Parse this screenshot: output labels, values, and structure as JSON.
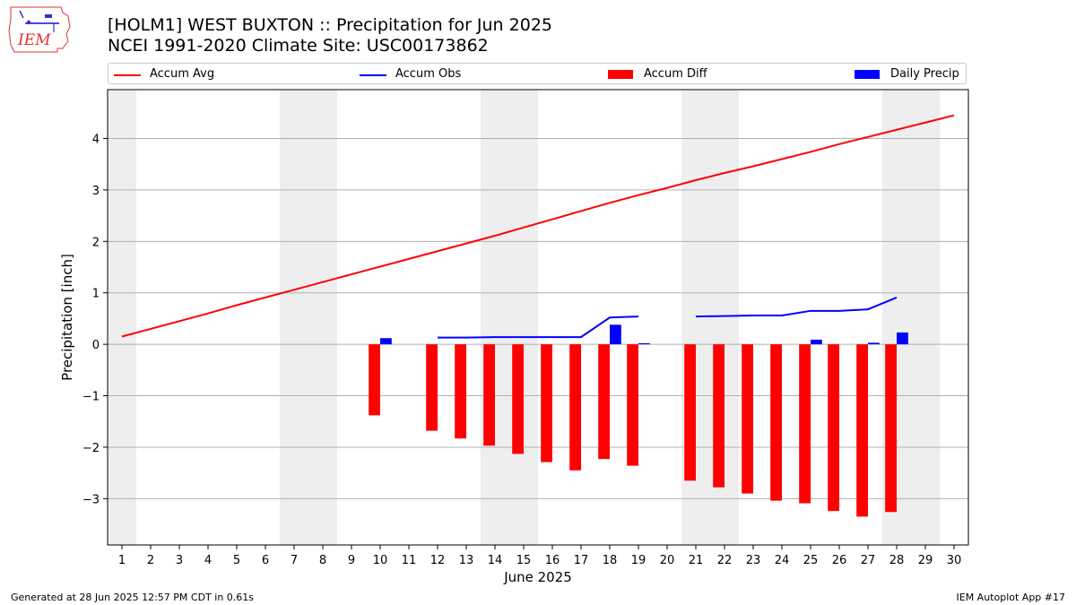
{
  "title": "[HOLM1] WEST BUXTON :: Precipitation for Jun 2025",
  "subtitle": "NCEI 1991-2020 Climate Site: USC00173862",
  "logo_text": "IEM",
  "footer_left": "Generated at 28 Jun 2025 12:57 PM CDT in 0.61s",
  "footer_right": "IEM Autoplot App #17",
  "legend": [
    {
      "label": "Accum Avg",
      "color": "#ff0000",
      "kind": "line"
    },
    {
      "label": "Accum Obs",
      "color": "#0000ff",
      "kind": "line"
    },
    {
      "label": "Accum Diff",
      "color": "#ff0000",
      "kind": "box"
    },
    {
      "label": "Daily Precip",
      "color": "#0000ff",
      "kind": "box"
    }
  ],
  "chart_data": {
    "type": "bar",
    "xlabel": "June 2025",
    "ylabel": "Precipitation [inch]",
    "xlim": [
      0.5,
      30.5
    ],
    "ylim": [
      -3.9,
      4.95
    ],
    "yticks": [
      -3,
      -2,
      -1,
      0,
      1,
      2,
      3,
      4
    ],
    "ytick_labels": [
      "−3",
      "−2",
      "−1",
      "0",
      "1",
      "2",
      "3",
      "4"
    ],
    "xticks": [
      1,
      2,
      3,
      4,
      5,
      6,
      7,
      8,
      9,
      10,
      11,
      12,
      13,
      14,
      15,
      16,
      17,
      18,
      19,
      20,
      21,
      22,
      23,
      24,
      25,
      26,
      27,
      28,
      29,
      30
    ],
    "grid": "y",
    "weekend_shading_days": [
      [
        0.5,
        1.5
      ],
      [
        6.5,
        8.5
      ],
      [
        13.5,
        15.5
      ],
      [
        20.5,
        22.5
      ],
      [
        27.5,
        29.5
      ]
    ],
    "series": [
      {
        "name": "Accum Avg",
        "type": "line",
        "color": "#ff0000",
        "x": [
          1,
          2,
          3,
          4,
          5,
          6,
          7,
          8,
          9,
          10,
          11,
          12,
          13,
          14,
          15,
          16,
          17,
          18,
          19,
          20,
          21,
          22,
          23,
          24,
          25,
          26,
          27,
          28,
          29,
          30
        ],
        "y": [
          0.15,
          0.3,
          0.45,
          0.6,
          0.76,
          0.91,
          1.06,
          1.21,
          1.36,
          1.51,
          1.66,
          1.81,
          1.96,
          2.11,
          2.27,
          2.43,
          2.59,
          2.75,
          2.9,
          3.04,
          3.19,
          3.33,
          3.46,
          3.6,
          3.74,
          3.89,
          4.03,
          4.17,
          4.31,
          4.45
        ]
      },
      {
        "name": "Accum Obs",
        "type": "line",
        "color": "#0000ff",
        "segments": [
          {
            "x": [
              12,
              13,
              14,
              15,
              16,
              17,
              18,
              19
            ],
            "y": [
              0.13,
              0.13,
              0.14,
              0.14,
              0.14,
              0.14,
              0.52,
              0.54
            ]
          },
          {
            "x": [
              21,
              22,
              23,
              24,
              25,
              26,
              27,
              28
            ],
            "y": [
              0.54,
              0.55,
              0.56,
              0.56,
              0.65,
              0.65,
              0.68,
              0.91
            ]
          }
        ]
      },
      {
        "name": "Accum Diff",
        "type": "bar",
        "color": "#ff0000",
        "x": [
          10,
          12,
          13,
          14,
          15,
          16,
          17,
          18,
          19,
          21,
          22,
          23,
          24,
          25,
          26,
          27,
          28
        ],
        "y": [
          -1.38,
          -1.68,
          -1.83,
          -1.97,
          -2.13,
          -2.29,
          -2.45,
          -2.23,
          -2.36,
          -2.65,
          -2.78,
          -2.9,
          -3.04,
          -3.09,
          -3.24,
          -3.35,
          -3.26
        ]
      },
      {
        "name": "Daily Precip",
        "type": "bar",
        "color": "#0000ff",
        "x": [
          10,
          18,
          19,
          25,
          27,
          28
        ],
        "y": [
          0.12,
          0.38,
          0.02,
          0.09,
          0.03,
          0.23
        ]
      }
    ]
  }
}
